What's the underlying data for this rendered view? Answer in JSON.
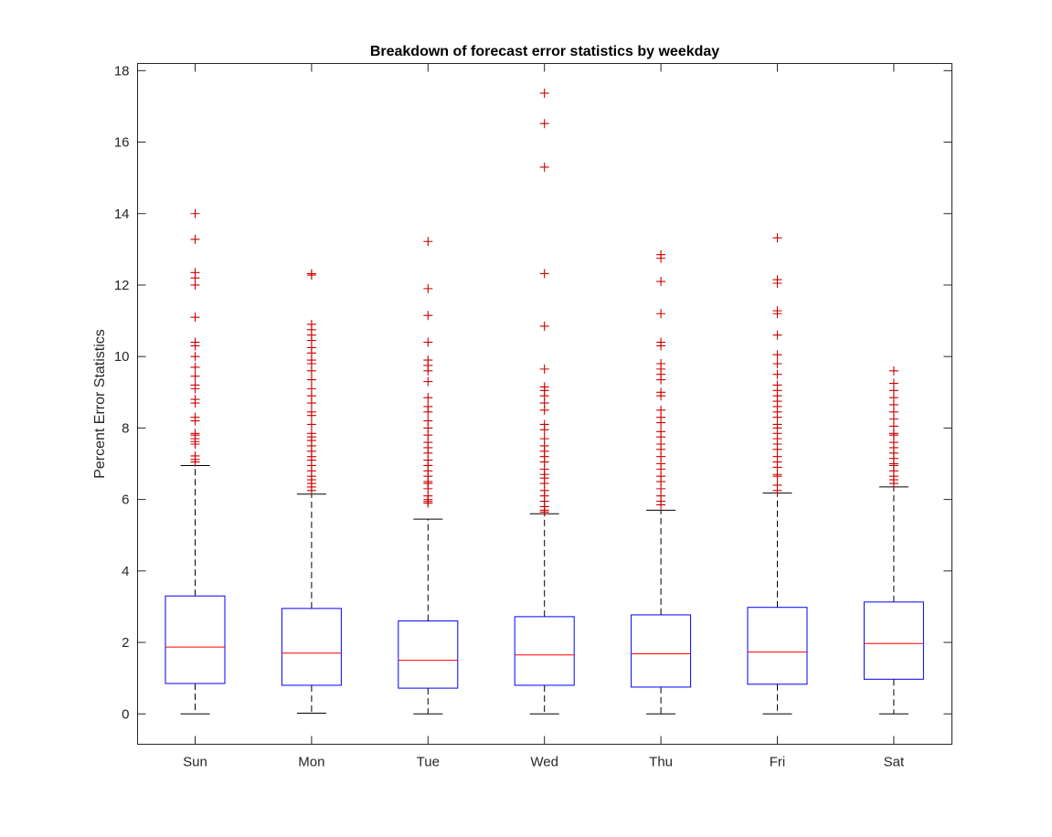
{
  "chart_data": {
    "type": "boxplot",
    "title": "Breakdown of forecast error statistics by weekday",
    "xlabel": "",
    "ylabel": "Percent Error Statistics",
    "ylim": [
      -0.85,
      18.2
    ],
    "yticks": [
      0,
      2,
      4,
      6,
      8,
      10,
      12,
      14,
      16,
      18
    ],
    "grid": false,
    "legend": "none",
    "colors": {
      "box": "#0000ff",
      "median": "#ff0000",
      "whisker": "#000000",
      "outlier": "#cc0000"
    },
    "categories": [
      "Sun",
      "Mon",
      "Tue",
      "Wed",
      "Thu",
      "Fri",
      "Sat"
    ],
    "boxes": [
      {
        "category": "Sun",
        "min": 0,
        "q1": 0.85,
        "median": 1.87,
        "q3": 3.3,
        "max": 6.95,
        "outliers": [
          7.05,
          7.12,
          7.22,
          7.55,
          7.62,
          7.7,
          7.8,
          7.85,
          8.2,
          8.3,
          8.7,
          8.8,
          9.1,
          9.2,
          9.45,
          9.7,
          10.0,
          10.3,
          10.4,
          11.1,
          12.0,
          12.2,
          12.35,
          13.28,
          14.0
        ]
      },
      {
        "category": "Mon",
        "min": 0.02,
        "q1": 0.8,
        "median": 1.7,
        "q3": 2.95,
        "max": 6.15,
        "outliers": [
          6.25,
          6.35,
          6.45,
          6.55,
          6.65,
          6.8,
          6.95,
          7.1,
          7.2,
          7.35,
          7.5,
          7.65,
          7.75,
          7.85,
          8.1,
          8.35,
          8.45,
          8.7,
          8.9,
          9.1,
          9.35,
          9.6,
          9.8,
          9.9,
          10.1,
          10.25,
          10.45,
          10.6,
          10.75,
          10.9,
          12.28,
          12.32
        ]
      },
      {
        "category": "Tue",
        "min": 0,
        "q1": 0.72,
        "median": 1.5,
        "q3": 2.6,
        "max": 5.45,
        "outliers": [
          5.9,
          5.95,
          6.0,
          6.1,
          6.3,
          6.45,
          6.5,
          6.65,
          6.8,
          6.95,
          7.1,
          7.3,
          7.45,
          7.6,
          7.8,
          8.0,
          8.2,
          8.45,
          8.6,
          8.85,
          9.3,
          9.6,
          9.75,
          9.9,
          10.4,
          11.15,
          11.9,
          13.22
        ]
      },
      {
        "category": "Wed",
        "min": 0,
        "q1": 0.8,
        "median": 1.65,
        "q3": 2.72,
        "max": 5.6,
        "outliers": [
          5.65,
          5.7,
          5.8,
          5.95,
          6.1,
          6.25,
          6.45,
          6.6,
          6.7,
          6.85,
          7.05,
          7.2,
          7.35,
          7.5,
          7.7,
          7.95,
          8.1,
          8.5,
          8.7,
          8.9,
          9.05,
          9.15,
          9.65,
          10.85,
          12.32,
          15.3,
          16.52,
          17.37
        ]
      },
      {
        "category": "Thu",
        "min": 0,
        "q1": 0.75,
        "median": 1.68,
        "q3": 2.77,
        "max": 5.7,
        "outliers": [
          5.85,
          5.95,
          6.1,
          6.3,
          6.5,
          6.65,
          6.85,
          7.0,
          7.2,
          7.4,
          7.55,
          7.75,
          7.9,
          8.15,
          8.3,
          8.5,
          8.9,
          9.0,
          9.35,
          9.5,
          9.65,
          9.8,
          10.3,
          10.4,
          11.2,
          12.1,
          12.75,
          12.85
        ]
      },
      {
        "category": "Fri",
        "min": 0,
        "q1": 0.83,
        "median": 1.73,
        "q3": 2.98,
        "max": 6.18,
        "outliers": [
          6.25,
          6.4,
          6.65,
          6.7,
          6.9,
          7.05,
          7.2,
          7.4,
          7.55,
          7.7,
          7.85,
          8.0,
          8.1,
          8.3,
          8.45,
          8.6,
          8.75,
          8.9,
          9.05,
          9.2,
          9.5,
          9.8,
          10.05,
          10.6,
          11.2,
          11.28,
          12.05,
          12.15,
          13.32
        ]
      },
      {
        "category": "Sat",
        "min": 0,
        "q1": 0.97,
        "median": 1.97,
        "q3": 3.13,
        "max": 6.35,
        "outliers": [
          6.45,
          6.55,
          6.65,
          6.8,
          6.95,
          7.0,
          7.15,
          7.3,
          7.45,
          7.6,
          7.8,
          7.85,
          8.05,
          8.25,
          8.45,
          8.65,
          8.85,
          9.05,
          9.25,
          9.6
        ]
      }
    ]
  }
}
